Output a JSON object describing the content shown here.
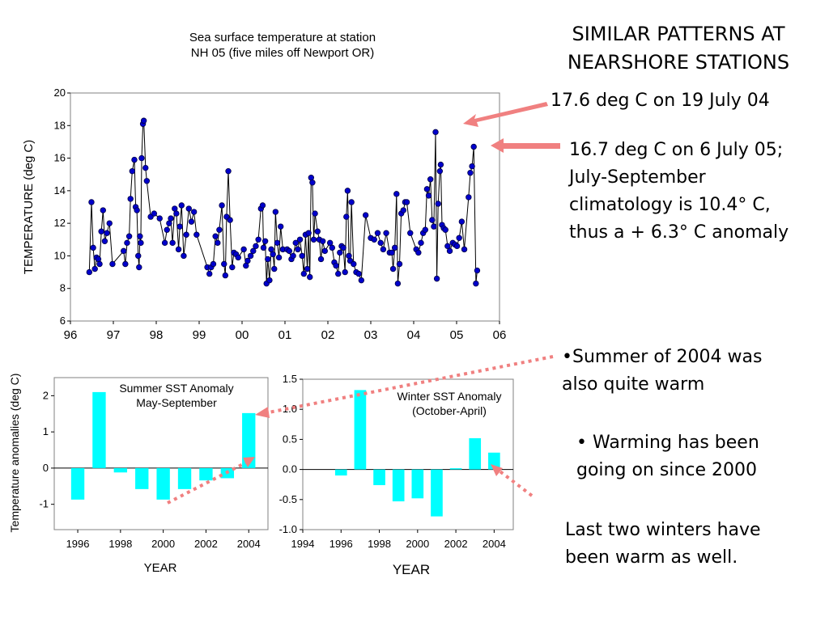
{
  "slide": {
    "heading": [
      "SIMILAR PATTERNS AT",
      "NEARSHORE STATIONS"
    ],
    "note_july04": "17.6 deg C on 19 July 04",
    "note_july05": [
      "16.7 deg C on 6 July 05;",
      "July-September",
      "climatology is 10.4° C,",
      "thus a + 6.3° C anomaly"
    ],
    "bullet_2004": [
      "•Summer of 2004 was",
      "also quite warm"
    ],
    "bullet_warming": [
      "• Warming has been",
      "going on  since 2000"
    ],
    "last_winters": [
      "Last two winters have",
      "been warm as well."
    ],
    "arrow_color": "#f08080"
  },
  "chart_data": [
    {
      "type": "line",
      "title": [
        "Sea surface temperature at station",
        "NH 05 (five miles off Newport OR)"
      ],
      "xlabel": "",
      "ylabel": "TEMPERATURE (deg C)",
      "xlim": [
        1996,
        2006
      ],
      "ylim": [
        6,
        20
      ],
      "x_tick_labels": [
        "96",
        "97",
        "98",
        "99",
        "00",
        "01",
        "02",
        "03",
        "04",
        "05",
        "06"
      ],
      "y_ticks": [
        6,
        8,
        10,
        12,
        14,
        16,
        18,
        20
      ],
      "series": [
        {
          "color": "#0000cc",
          "marker": "circle",
          "points": [
            [
              1996.44,
              9.0
            ],
            [
              1996.49,
              13.3
            ],
            [
              1996.53,
              10.5
            ],
            [
              1996.57,
              9.2
            ],
            [
              1996.61,
              9.9
            ],
            [
              1996.65,
              9.8
            ],
            [
              1996.68,
              9.5
            ],
            [
              1996.72,
              11.5
            ],
            [
              1996.76,
              12.8
            ],
            [
              1996.8,
              10.9
            ],
            [
              1996.85,
              11.4
            ],
            [
              1996.91,
              12.0
            ],
            [
              1996.98,
              9.5
            ],
            [
              1997.24,
              10.3
            ],
            [
              1997.28,
              9.5
            ],
            [
              1997.32,
              10.8
            ],
            [
              1997.37,
              11.2
            ],
            [
              1997.4,
              13.5
            ],
            [
              1997.44,
              15.2
            ],
            [
              1997.49,
              15.9
            ],
            [
              1997.52,
              13.0
            ],
            [
              1997.55,
              12.8
            ],
            [
              1997.58,
              10.0
            ],
            [
              1997.6,
              9.3
            ],
            [
              1997.62,
              11.2
            ],
            [
              1997.64,
              10.8
            ],
            [
              1997.66,
              16.0
            ],
            [
              1997.69,
              18.1
            ],
            [
              1997.71,
              18.3
            ],
            [
              1997.75,
              15.4
            ],
            [
              1997.78,
              14.6
            ],
            [
              1997.87,
              12.4
            ],
            [
              1997.95,
              12.6
            ],
            [
              1998.08,
              12.3
            ],
            [
              1998.2,
              10.8
            ],
            [
              1998.25,
              11.6
            ],
            [
              1998.3,
              12.0
            ],
            [
              1998.34,
              12.3
            ],
            [
              1998.38,
              10.8
            ],
            [
              1998.43,
              12.9
            ],
            [
              1998.47,
              12.6
            ],
            [
              1998.52,
              10.4
            ],
            [
              1998.55,
              11.8
            ],
            [
              1998.59,
              13.1
            ],
            [
              1998.64,
              10.0
            ],
            [
              1998.7,
              11.3
            ],
            [
              1998.76,
              12.9
            ],
            [
              1998.82,
              12.1
            ],
            [
              1998.88,
              12.7
            ],
            [
              1998.94,
              11.3
            ],
            [
              1999.19,
              9.3
            ],
            [
              1999.24,
              8.9
            ],
            [
              1999.28,
              9.3
            ],
            [
              1999.33,
              9.5
            ],
            [
              1999.38,
              11.2
            ],
            [
              1999.43,
              10.8
            ],
            [
              1999.47,
              11.6
            ],
            [
              1999.53,
              13.1
            ],
            [
              1999.58,
              9.5
            ],
            [
              1999.61,
              8.8
            ],
            [
              1999.64,
              12.4
            ],
            [
              1999.68,
              15.2
            ],
            [
              1999.72,
              12.2
            ],
            [
              1999.77,
              9.3
            ],
            [
              1999.81,
              10.2
            ],
            [
              1999.86,
              10.1
            ],
            [
              1999.91,
              9.9
            ],
            [
              2000.04,
              10.4
            ],
            [
              2000.09,
              9.4
            ],
            [
              2000.13,
              9.7
            ],
            [
              2000.2,
              10.0
            ],
            [
              2000.26,
              10.3
            ],
            [
              2000.32,
              10.6
            ],
            [
              2000.38,
              11.0
            ],
            [
              2000.44,
              12.9
            ],
            [
              2000.48,
              13.1
            ],
            [
              2000.5,
              10.5
            ],
            [
              2000.54,
              10.9
            ],
            [
              2000.57,
              8.3
            ],
            [
              2000.6,
              9.8
            ],
            [
              2000.64,
              8.5
            ],
            [
              2000.68,
              10.4
            ],
            [
              2000.72,
              10.1
            ],
            [
              2000.75,
              9.2
            ],
            [
              2000.78,
              12.7
            ],
            [
              2000.82,
              10.8
            ],
            [
              2000.86,
              9.9
            ],
            [
              2000.9,
              11.8
            ],
            [
              2000.95,
              10.4
            ],
            [
              2001.05,
              10.4
            ],
            [
              2001.1,
              10.3
            ],
            [
              2001.15,
              9.8
            ],
            [
              2001.19,
              10.0
            ],
            [
              2001.25,
              10.8
            ],
            [
              2001.3,
              10.4
            ],
            [
              2001.35,
              11.0
            ],
            [
              2001.4,
              10.0
            ],
            [
              2001.44,
              8.9
            ],
            [
              2001.48,
              11.3
            ],
            [
              2001.52,
              9.2
            ],
            [
              2001.55,
              11.4
            ],
            [
              2001.58,
              8.7
            ],
            [
              2001.61,
              14.8
            ],
            [
              2001.64,
              14.5
            ],
            [
              2001.67,
              11.0
            ],
            [
              2001.7,
              12.6
            ],
            [
              2001.76,
              11.5
            ],
            [
              2001.8,
              11.0
            ],
            [
              2001.84,
              9.8
            ],
            [
              2001.88,
              10.9
            ],
            [
              2001.93,
              10.3
            ],
            [
              2002.05,
              10.8
            ],
            [
              2002.1,
              10.5
            ],
            [
              2002.15,
              9.6
            ],
            [
              2002.19,
              9.4
            ],
            [
              2002.24,
              8.9
            ],
            [
              2002.28,
              10.2
            ],
            [
              2002.32,
              10.6
            ],
            [
              2002.36,
              10.5
            ],
            [
              2002.4,
              9.0
            ],
            [
              2002.43,
              12.4
            ],
            [
              2002.46,
              14.0
            ],
            [
              2002.49,
              10.0
            ],
            [
              2002.52,
              9.7
            ],
            [
              2002.55,
              13.3
            ],
            [
              2002.6,
              9.5
            ],
            [
              2002.66,
              9.0
            ],
            [
              2002.72,
              8.9
            ],
            [
              2002.78,
              8.5
            ],
            [
              2002.88,
              12.5
            ],
            [
              2003.0,
              11.1
            ],
            [
              2003.08,
              11.0
            ],
            [
              2003.16,
              11.4
            ],
            [
              2003.23,
              10.8
            ],
            [
              2003.29,
              10.4
            ],
            [
              2003.36,
              11.4
            ],
            [
              2003.44,
              10.2
            ],
            [
              2003.49,
              10.2
            ],
            [
              2003.52,
              9.2
            ],
            [
              2003.56,
              10.5
            ],
            [
              2003.6,
              13.8
            ],
            [
              2003.63,
              8.3
            ],
            [
              2003.67,
              9.5
            ],
            [
              2003.71,
              12.6
            ],
            [
              2003.76,
              12.8
            ],
            [
              2003.8,
              13.3
            ],
            [
              2003.84,
              13.3
            ],
            [
              2003.92,
              11.4
            ],
            [
              2004.06,
              10.4
            ],
            [
              2004.11,
              10.2
            ],
            [
              2004.17,
              10.8
            ],
            [
              2004.22,
              11.4
            ],
            [
              2004.27,
              11.6
            ],
            [
              2004.31,
              14.1
            ],
            [
              2004.35,
              13.7
            ],
            [
              2004.39,
              14.7
            ],
            [
              2004.43,
              12.2
            ],
            [
              2004.47,
              11.8
            ],
            [
              2004.51,
              17.6
            ],
            [
              2004.54,
              8.6
            ],
            [
              2004.57,
              13.2
            ],
            [
              2004.61,
              15.2
            ],
            [
              2004.63,
              15.6
            ],
            [
              2004.66,
              11.9
            ],
            [
              2004.7,
              11.7
            ],
            [
              2004.74,
              11.6
            ],
            [
              2004.79,
              10.6
            ],
            [
              2004.84,
              10.3
            ],
            [
              2004.91,
              10.8
            ],
            [
              2004.96,
              10.7
            ],
            [
              2005.01,
              10.6
            ],
            [
              2005.06,
              11.1
            ],
            [
              2005.12,
              12.1
            ],
            [
              2005.18,
              10.4
            ],
            [
              2005.28,
              13.6
            ],
            [
              2005.32,
              15.1
            ],
            [
              2005.36,
              15.5
            ],
            [
              2005.4,
              16.7
            ],
            [
              2005.45,
              8.3
            ],
            [
              2005.48,
              9.1
            ]
          ]
        }
      ]
    },
    {
      "type": "bar",
      "title": [
        "Summer SST Anomaly",
        "May-September"
      ],
      "xlabel": "YEAR",
      "ylabel": "Temperature anomalies (deg C)",
      "xlim": [
        1994.9,
        2004.9
      ],
      "ylim": [
        -1.7,
        2.5
      ],
      "y_ticks": [
        -1,
        0,
        1,
        2
      ],
      "x_ticks": [
        1996,
        1998,
        2000,
        2002,
        2004
      ],
      "bar_color": "#00ffff",
      "categories": [
        1996,
        1997,
        1998,
        1999,
        2000,
        2001,
        2002,
        2003,
        2004
      ],
      "values": [
        -0.87,
        2.1,
        -0.12,
        -0.58,
        -0.87,
        -0.58,
        -0.34,
        -0.28,
        1.52
      ]
    },
    {
      "type": "bar",
      "title": [
        "Winter SST Anomaly",
        "(October-April)"
      ],
      "xlabel": "YEAR",
      "ylabel": "",
      "xlim": [
        1994,
        2005
      ],
      "ylim": [
        -1.0,
        1.5
      ],
      "y_ticks": [
        -1.0,
        -0.5,
        0.0,
        0.5,
        1.0,
        1.5
      ],
      "y_tick_labels": [
        "-1.0",
        "-0.5",
        "0.0",
        "0.5",
        "1.0",
        "1.5"
      ],
      "x_ticks": [
        1994,
        1996,
        1998,
        2000,
        2002,
        2004
      ],
      "bar_color": "#00ffff",
      "categories": [
        1996,
        1997,
        1998,
        1999,
        2000,
        2001,
        2002,
        2003,
        2004
      ],
      "values": [
        -0.1,
        1.32,
        -0.26,
        -0.53,
        -0.48,
        -0.78,
        0.02,
        0.52,
        0.28
      ]
    }
  ]
}
